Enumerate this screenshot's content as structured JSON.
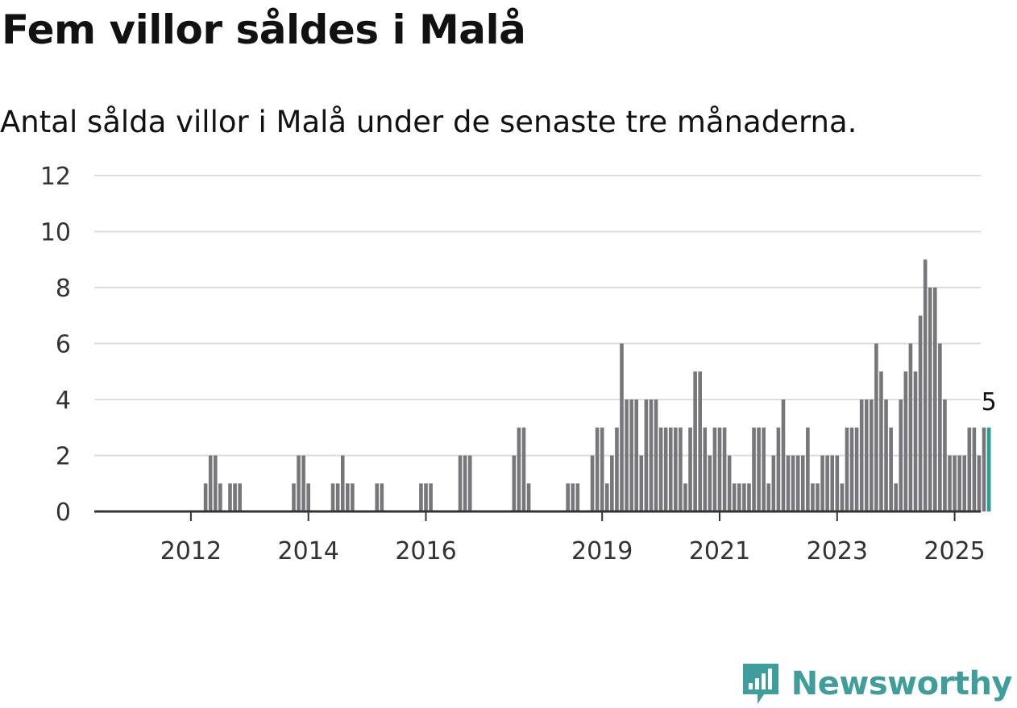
{
  "title": "Fem villor såldes i Malå",
  "subtitle": "Antal sålda villor i Malå under de senaste tre månaderna.",
  "brand": "Newsworthy",
  "colors": {
    "bar": "#76767b",
    "highlight": "#2a9d96",
    "grid": "#dddddd",
    "axis": "#333333",
    "brand": "#3f9e9b"
  },
  "chart_data": {
    "type": "bar",
    "x_start": "2011-01",
    "x_end": "2025-08",
    "x_ticks": [
      {
        "label": "2012",
        "month": "2012-01"
      },
      {
        "label": "2014",
        "month": "2014-01"
      },
      {
        "label": "2016",
        "month": "2016-01"
      },
      {
        "label": "2019",
        "month": "2019-01"
      },
      {
        "label": "2021",
        "month": "2021-01"
      },
      {
        "label": "2023",
        "month": "2023-01"
      },
      {
        "label": "2025",
        "month": "2025-01"
      }
    ],
    "y_ticks": [
      0,
      2,
      4,
      6,
      8,
      10,
      12
    ],
    "ylim": [
      0,
      12
    ],
    "grid": true,
    "highlight_label": "5",
    "bars": [
      {
        "month": "2012-04",
        "value": 1
      },
      {
        "month": "2012-05",
        "value": 2
      },
      {
        "month": "2012-06",
        "value": 2
      },
      {
        "month": "2012-07",
        "value": 1
      },
      {
        "month": "2012-09",
        "value": 1
      },
      {
        "month": "2012-10",
        "value": 1
      },
      {
        "month": "2012-11",
        "value": 1
      },
      {
        "month": "2013-10",
        "value": 1
      },
      {
        "month": "2013-11",
        "value": 2
      },
      {
        "month": "2013-12",
        "value": 2
      },
      {
        "month": "2014-01",
        "value": 1
      },
      {
        "month": "2014-06",
        "value": 1
      },
      {
        "month": "2014-07",
        "value": 1
      },
      {
        "month": "2014-08",
        "value": 2
      },
      {
        "month": "2014-09",
        "value": 1
      },
      {
        "month": "2014-10",
        "value": 1
      },
      {
        "month": "2015-03",
        "value": 1
      },
      {
        "month": "2015-04",
        "value": 1
      },
      {
        "month": "2015-12",
        "value": 1
      },
      {
        "month": "2016-01",
        "value": 1
      },
      {
        "month": "2016-02",
        "value": 1
      },
      {
        "month": "2016-08",
        "value": 2
      },
      {
        "month": "2016-09",
        "value": 2
      },
      {
        "month": "2016-10",
        "value": 2
      },
      {
        "month": "2017-07",
        "value": 2
      },
      {
        "month": "2017-08",
        "value": 3
      },
      {
        "month": "2017-09",
        "value": 3
      },
      {
        "month": "2017-10",
        "value": 1
      },
      {
        "month": "2018-06",
        "value": 1
      },
      {
        "month": "2018-07",
        "value": 1
      },
      {
        "month": "2018-08",
        "value": 1
      },
      {
        "month": "2018-11",
        "value": 2
      },
      {
        "month": "2018-12",
        "value": 3
      },
      {
        "month": "2019-01",
        "value": 3
      },
      {
        "month": "2019-02",
        "value": 1
      },
      {
        "month": "2019-03",
        "value": 2
      },
      {
        "month": "2019-04",
        "value": 3
      },
      {
        "month": "2019-05",
        "value": 6
      },
      {
        "month": "2019-06",
        "value": 4
      },
      {
        "month": "2019-07",
        "value": 4
      },
      {
        "month": "2019-08",
        "value": 4
      },
      {
        "month": "2019-09",
        "value": 2
      },
      {
        "month": "2019-10",
        "value": 4
      },
      {
        "month": "2019-11",
        "value": 4
      },
      {
        "month": "2019-12",
        "value": 4
      },
      {
        "month": "2020-01",
        "value": 3
      },
      {
        "month": "2020-02",
        "value": 3
      },
      {
        "month": "2020-03",
        "value": 3
      },
      {
        "month": "2020-04",
        "value": 3
      },
      {
        "month": "2020-05",
        "value": 3
      },
      {
        "month": "2020-06",
        "value": 1
      },
      {
        "month": "2020-07",
        "value": 3
      },
      {
        "month": "2020-08",
        "value": 5
      },
      {
        "month": "2020-09",
        "value": 5
      },
      {
        "month": "2020-10",
        "value": 3
      },
      {
        "month": "2020-11",
        "value": 2
      },
      {
        "month": "2020-12",
        "value": 3
      },
      {
        "month": "2021-01",
        "value": 3
      },
      {
        "month": "2021-02",
        "value": 3
      },
      {
        "month": "2021-03",
        "value": 2
      },
      {
        "month": "2021-04",
        "value": 1
      },
      {
        "month": "2021-05",
        "value": 1
      },
      {
        "month": "2021-06",
        "value": 1
      },
      {
        "month": "2021-07",
        "value": 1
      },
      {
        "month": "2021-08",
        "value": 3
      },
      {
        "month": "2021-09",
        "value": 3
      },
      {
        "month": "2021-10",
        "value": 3
      },
      {
        "month": "2021-11",
        "value": 1
      },
      {
        "month": "2021-12",
        "value": 2
      },
      {
        "month": "2022-01",
        "value": 3
      },
      {
        "month": "2022-02",
        "value": 4
      },
      {
        "month": "2022-03",
        "value": 2
      },
      {
        "month": "2022-04",
        "value": 2
      },
      {
        "month": "2022-05",
        "value": 2
      },
      {
        "month": "2022-06",
        "value": 2
      },
      {
        "month": "2022-07",
        "value": 3
      },
      {
        "month": "2022-08",
        "value": 1
      },
      {
        "month": "2022-09",
        "value": 1
      },
      {
        "month": "2022-10",
        "value": 2
      },
      {
        "month": "2022-11",
        "value": 2
      },
      {
        "month": "2022-12",
        "value": 2
      },
      {
        "month": "2023-01",
        "value": 2
      },
      {
        "month": "2023-02",
        "value": 1
      },
      {
        "month": "2023-03",
        "value": 3
      },
      {
        "month": "2023-04",
        "value": 3
      },
      {
        "month": "2023-05",
        "value": 3
      },
      {
        "month": "2023-06",
        "value": 4
      },
      {
        "month": "2023-07",
        "value": 4
      },
      {
        "month": "2023-08",
        "value": 4
      },
      {
        "month": "2023-09",
        "value": 6
      },
      {
        "month": "2023-10",
        "value": 5
      },
      {
        "month": "2023-11",
        "value": 4
      },
      {
        "month": "2023-12",
        "value": 3
      },
      {
        "month": "2024-01",
        "value": 1
      },
      {
        "month": "2024-02",
        "value": 4
      },
      {
        "month": "2024-03",
        "value": 5
      },
      {
        "month": "2024-04",
        "value": 6
      },
      {
        "month": "2024-05",
        "value": 5
      },
      {
        "month": "2024-06",
        "value": 7
      },
      {
        "month": "2024-07",
        "value": 9
      },
      {
        "month": "2024-08",
        "value": 8
      },
      {
        "month": "2024-09",
        "value": 8
      },
      {
        "month": "2024-10",
        "value": 6
      },
      {
        "month": "2024-11",
        "value": 4
      },
      {
        "month": "2024-12",
        "value": 2
      },
      {
        "month": "2025-01",
        "value": 2
      },
      {
        "month": "2025-02",
        "value": 2
      },
      {
        "month": "2025-03",
        "value": 2
      },
      {
        "month": "2025-04",
        "value": 3
      },
      {
        "month": "2025-05",
        "value": 3
      },
      {
        "month": "2025-06",
        "value": 2
      },
      {
        "month": "2025-07",
        "value": 3
      },
      {
        "month": "2025-08",
        "value": 3
      }
    ]
  }
}
